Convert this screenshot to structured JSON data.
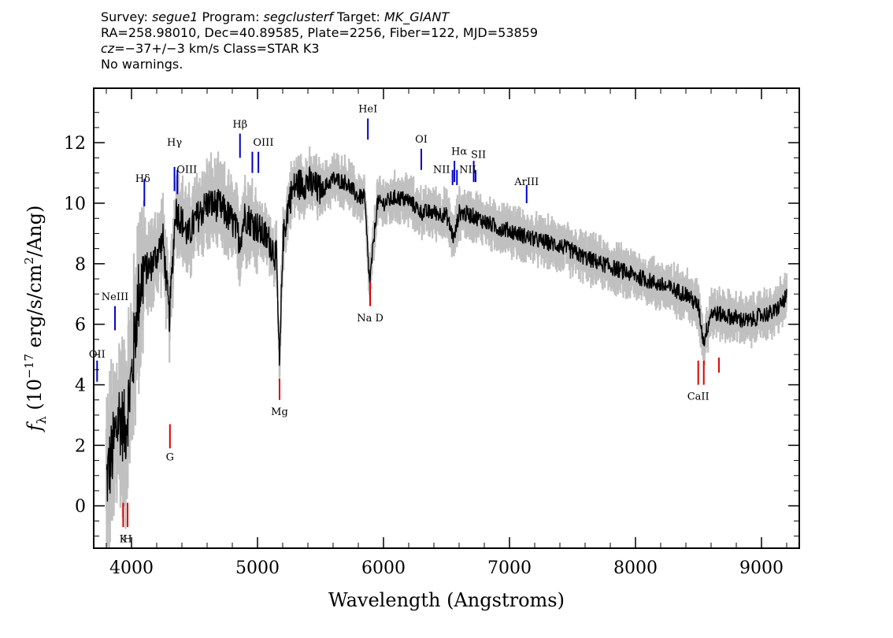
{
  "header": {
    "line1": {
      "survey_label": "Survey: ",
      "survey": "segue1",
      "program_label": " Program: ",
      "program": "segclusterf",
      "target_label": " Target: ",
      "target": "MK_GIANT"
    },
    "line2": "RA=258.98010, Dec=40.89585, Plate=2256, Fiber=122, MJD=53859",
    "line3": {
      "cz": "cz",
      "cz_value": "=−37+/−3",
      "cz_unit": " km/s Class=STAR K3"
    },
    "line4": "No warnings."
  },
  "chart_data": {
    "type": "line",
    "xlabel": "Wavelength (Angstroms)",
    "ylabel_prefix": "f",
    "ylabel_sub": "λ",
    "ylabel_open": " (10",
    "ylabel_exp": "−17",
    "ylabel_units": " erg/s/cm",
    "ylabel_exp2": "2",
    "ylabel_close": "/Ang)",
    "xlim": [
      3700,
      9300
    ],
    "ylim": [
      -1.4,
      13.8
    ],
    "xticks": [
      4000,
      5000,
      6000,
      7000,
      8000,
      9000
    ],
    "xtick_labels": [
      "4000",
      "5000",
      "6000",
      "7000",
      "8000",
      "9000"
    ],
    "yticks": [
      0,
      2,
      4,
      6,
      8,
      10,
      12
    ],
    "ytick_labels": [
      "0",
      "2",
      "4",
      "6",
      "8",
      "10",
      "12"
    ],
    "colors": {
      "flux": "#000000",
      "error": "#c0c0c0",
      "emission": "#0000cc",
      "absorption": "#dd0000"
    },
    "spectrum_envelope": {
      "x": [
        3800,
        3850,
        3900,
        3950,
        4000,
        4050,
        4100,
        4150,
        4200,
        4250,
        4300,
        4350,
        4400,
        4450,
        4500,
        4600,
        4700,
        4800,
        4860,
        4900,
        5000,
        5100,
        5150,
        5175,
        5200,
        5250,
        5300,
        5400,
        5500,
        5600,
        5700,
        5800,
        5850,
        5890,
        5950,
        6000,
        6100,
        6200,
        6300,
        6400,
        6500,
        6560,
        6600,
        6700,
        6800,
        6900,
        7000,
        7200,
        7400,
        7600,
        7800,
        8000,
        8200,
        8400,
        8500,
        8540,
        8600,
        8700,
        8800,
        8900,
        9000,
        9100,
        9200
      ],
      "y": [
        0.8,
        1.8,
        3.0,
        2.5,
        4.2,
        6.8,
        7.8,
        7.9,
        8.3,
        8.8,
        6.2,
        9.8,
        9.4,
        8.9,
        9.4,
        10.0,
        9.9,
        9.4,
        8.8,
        9.6,
        9.2,
        8.7,
        8.2,
        4.4,
        8.7,
        10.1,
        10.6,
        10.7,
        10.4,
        10.8,
        10.7,
        10.2,
        10.2,
        7.3,
        10.0,
        10.0,
        10.2,
        10.1,
        9.7,
        9.7,
        9.6,
        8.8,
        9.7,
        9.6,
        9.4,
        9.2,
        9.1,
        8.8,
        8.6,
        8.2,
        7.9,
        7.6,
        7.3,
        7.0,
        6.6,
        5.4,
        6.4,
        6.3,
        6.2,
        6.1,
        6.3,
        6.4,
        6.9
      ]
    },
    "emission_lines": [
      {
        "label": "Hγ",
        "x": 4341,
        "y1": 10.4,
        "y2": 11.2,
        "label_y": 11.9
      },
      {
        "label": "OIII",
        "x": 4364,
        "y1": 10.3,
        "y2": 11.1,
        "label_y": 11.0,
        "dx": 12
      },
      {
        "label": "Hδ",
        "x": 4102,
        "y1": 9.9,
        "y2": 10.8,
        "label_y": 10.7,
        "dx": -2
      },
      {
        "label": "Hβ",
        "x": 4861,
        "y1": 11.5,
        "y2": 12.3,
        "label_y": 12.5
      },
      {
        "label": "OIII",
        "x": 4959,
        "y1": 11.0,
        "y2": 11.7,
        "label_y": 11.9,
        "dx": 14
      },
      {
        "label": "OIII",
        "x": 5007,
        "y1": 11.0,
        "y2": 11.7,
        "label_y": -99
      },
      {
        "label": "HeI",
        "x": 5876,
        "y1": 12.1,
        "y2": 12.8,
        "label_y": 13.0
      },
      {
        "label": "OI",
        "x": 6300,
        "y1": 11.1,
        "y2": 11.8,
        "label_y": 12.0
      },
      {
        "label": "NII",
        "x": 6548,
        "y1": 10.6,
        "y2": 11.1,
        "label_y": 11.0,
        "dx": -14
      },
      {
        "label": "Hα",
        "x": 6563,
        "y1": 10.7,
        "y2": 11.4,
        "label_y": 11.6,
        "dx": 6
      },
      {
        "label": "NII",
        "x": 6583,
        "y1": 10.6,
        "y2": 11.1,
        "label_y": -99
      },
      {
        "label": "SII",
        "x": 6716,
        "y1": 10.7,
        "y2": 11.4,
        "label_y": 11.5,
        "dx": 6
      },
      {
        "label": "NII",
        "x": 6731,
        "y1": 10.7,
        "y2": 11.1,
        "label_y": 11.0,
        "dx": -10
      },
      {
        "label": "ArIII",
        "x": 7136,
        "y1": 10.0,
        "y2": 10.6,
        "label_y": 10.6
      },
      {
        "label": "NeIII",
        "x": 3869,
        "y1": 5.8,
        "y2": 6.6,
        "label_y": 6.8
      },
      {
        "label": "OII",
        "x": 3727,
        "y1": 4.1,
        "y2": 4.8,
        "label_y": 4.9
      }
    ],
    "absorption_lines": [
      {
        "label": "K",
        "x": 3934,
        "y1": -0.7,
        "y2": 0.1,
        "label_y": -1.2
      },
      {
        "label": "H",
        "x": 3969,
        "y1": -0.7,
        "y2": 0.1,
        "label_y": -1.2
      },
      {
        "label": "G",
        "x": 4305,
        "y1": 1.9,
        "y2": 2.7,
        "label_y": 1.5
      },
      {
        "label": "Mg",
        "x": 5175,
        "y1": 3.5,
        "y2": 4.2,
        "label_y": 3.0
      },
      {
        "label": "Na D",
        "x": 5894,
        "y1": 6.6,
        "y2": 7.4,
        "label_y": 6.1
      },
      {
        "label": "CaII",
        "x": 8498,
        "y1": 4.0,
        "y2": 4.8,
        "label_y": 3.5
      },
      {
        "label": "CaII",
        "x": 8542,
        "y1": 4.0,
        "y2": 4.8,
        "label_y": -99
      },
      {
        "label": "CaII",
        "x": 8662,
        "y1": 4.4,
        "y2": 4.9,
        "label_y": -99
      }
    ]
  }
}
